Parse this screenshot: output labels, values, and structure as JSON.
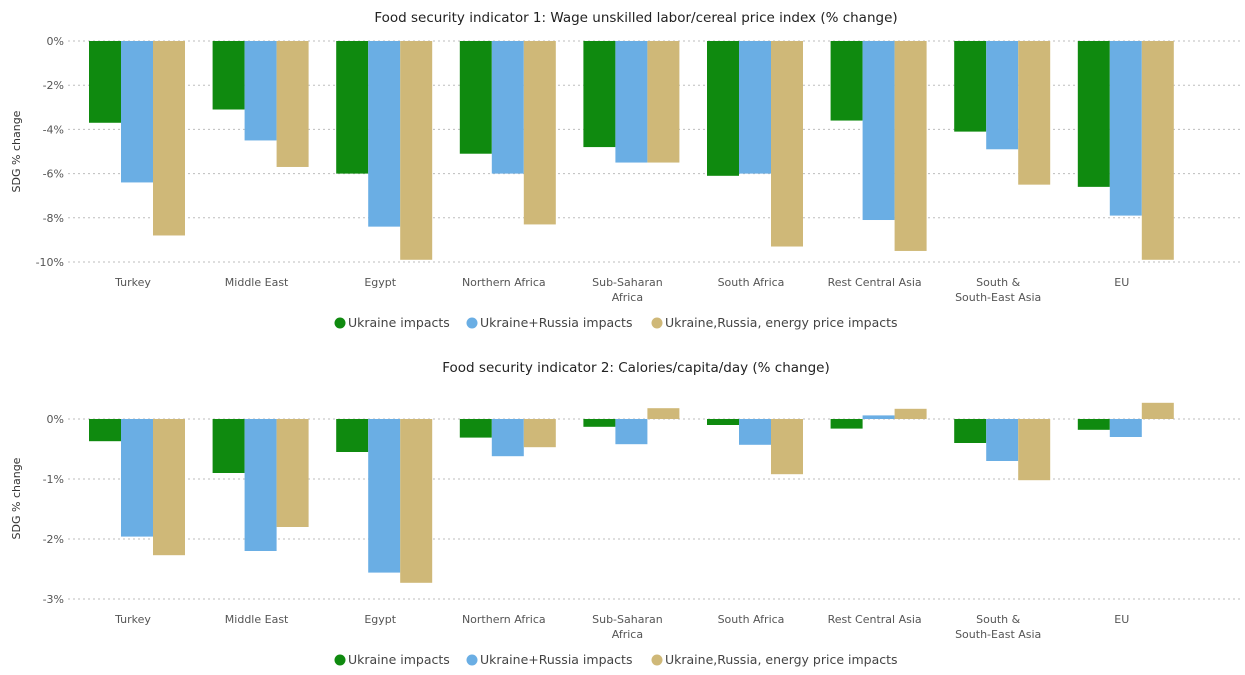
{
  "chart_data": [
    {
      "type": "bar",
      "title": "Food security indicator 1: Wage unskilled labor/cereal price index (% change)",
      "ylabel": "SDG % change",
      "ylim": [
        -10,
        0
      ],
      "yticks": [
        0,
        -2,
        -4,
        -6,
        -8,
        -10
      ],
      "ytick_labels": [
        "0%",
        "-2%",
        "-4%",
        "-6%",
        "-8%",
        "-10%"
      ],
      "grid": true,
      "legend_position": "bottom-center",
      "categories": [
        [
          "Turkey"
        ],
        [
          "Middle East"
        ],
        [
          "Egypt"
        ],
        [
          "Northern Africa"
        ],
        [
          "Sub-Saharan",
          "Africa"
        ],
        [
          "South Africa"
        ],
        [
          "Rest Central Asia"
        ],
        [
          "South &",
          "South-East Asia"
        ],
        [
          "EU"
        ]
      ],
      "series": [
        {
          "name": "Ukraine impacts",
          "color": "#0f8a0f",
          "values": [
            -3.7,
            -3.1,
            -6.0,
            -5.1,
            -4.8,
            -6.1,
            -3.6,
            -4.1,
            -6.6
          ]
        },
        {
          "name": "Ukraine+Russia impacts",
          "color": "#6aaee4",
          "values": [
            -6.4,
            -4.5,
            -8.4,
            -6.0,
            -5.5,
            -6.0,
            -8.1,
            -4.9,
            -7.9
          ]
        },
        {
          "name": "Ukraine,Russia, energy price impacts",
          "color": "#cfb878",
          "values": [
            -8.8,
            -5.7,
            -9.9,
            -8.3,
            -5.5,
            -9.3,
            -9.5,
            -6.5,
            -9.9
          ]
        }
      ]
    },
    {
      "type": "bar",
      "title": "Food security indicator 2: Calories/capita/day (% change)",
      "ylabel": "SDG % change",
      "ylim": [
        -3,
        0.35
      ],
      "yticks": [
        0,
        -1,
        -2,
        -3
      ],
      "ytick_labels": [
        "0%",
        "-1%",
        "-2%",
        "-3%"
      ],
      "grid": true,
      "legend_position": "bottom-center",
      "categories": [
        [
          "Turkey"
        ],
        [
          "Middle East"
        ],
        [
          "Egypt"
        ],
        [
          "Northern Africa"
        ],
        [
          "Sub-Saharan",
          "Africa"
        ],
        [
          "South Africa"
        ],
        [
          "Rest Central Asia"
        ],
        [
          "South &",
          "South-East Asia"
        ],
        [
          "EU"
        ]
      ],
      "series": [
        {
          "name": "Ukraine impacts",
          "color": "#0f8a0f",
          "values": [
            -0.37,
            -0.9,
            -0.55,
            -0.31,
            -0.13,
            -0.1,
            -0.16,
            -0.4,
            -0.18
          ]
        },
        {
          "name": "Ukraine+Russia impacts",
          "color": "#6aaee4",
          "values": [
            -1.96,
            -2.2,
            -2.56,
            -0.62,
            -0.42,
            -0.43,
            0.06,
            -0.7,
            -0.3
          ]
        },
        {
          "name": "Ukraine,Russia, energy price impacts",
          "color": "#cfb878",
          "values": [
            -2.27,
            -1.8,
            -2.73,
            -0.47,
            0.18,
            -0.92,
            0.17,
            -1.02,
            0.27
          ]
        }
      ]
    }
  ]
}
